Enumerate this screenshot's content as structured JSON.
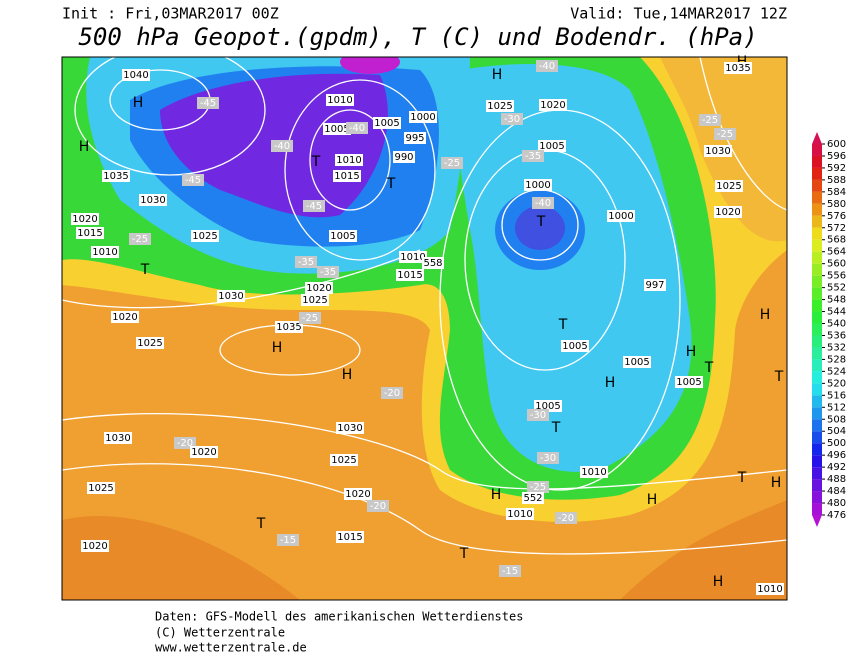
{
  "header": {
    "init": "Init : Fri,03MAR2017 00Z",
    "valid": "Valid: Tue,14MAR2017 12Z",
    "title": "500 hPa Geopot.(gpdm), T (C) und Bodendr. (hPa)"
  },
  "map_labels": [
    "1040",
    "H",
    "-45",
    "H",
    "1035",
    "-45",
    "1030",
    "1020",
    "1015",
    "-25",
    "1025",
    "1010",
    "T",
    "1030",
    "1020",
    "1025",
    "1035",
    "-25",
    "H",
    "H",
    "-20",
    "1030",
    "-20",
    "1020",
    "1030",
    "1025",
    "1020",
    "-20",
    "1025",
    "T",
    "-15",
    "1015",
    "1020",
    "1010",
    "1005",
    "-40",
    "1005",
    "1000",
    "995",
    "T",
    "1010",
    "990",
    "-40",
    "1015",
    "T",
    "-25",
    "-45",
    "1005",
    "1010",
    "1015",
    "558",
    "-35",
    "-35",
    "1020",
    "1025",
    "H",
    "-40",
    "1025",
    "1020",
    "-30",
    "1005",
    "-35",
    "1000",
    "-40",
    "T",
    "1000",
    "997",
    "T",
    "1005",
    "1005",
    "H",
    "H",
    "T",
    "1005",
    "1005",
    "-30",
    "T",
    "-30",
    "1010",
    "-25",
    "H",
    "552",
    "H",
    "1010",
    "-20",
    "T",
    "-15",
    "H",
    "1010",
    "T",
    "H",
    "H",
    "T",
    "H",
    "1035",
    "-25",
    "-25",
    "1030",
    "1025",
    "1020"
  ],
  "colorbar": {
    "levels": [
      600,
      596,
      592,
      588,
      584,
      580,
      576,
      572,
      568,
      564,
      560,
      556,
      552,
      548,
      544,
      540,
      536,
      532,
      528,
      524,
      520,
      516,
      512,
      508,
      504,
      500,
      496,
      492,
      488,
      484,
      480,
      476
    ]
  },
  "footer": [
    "Daten: GFS-Modell des amerikanischen Wetterdienstes",
    "(C) Wetterzentrale",
    "www.wetterzentrale.de"
  ]
}
